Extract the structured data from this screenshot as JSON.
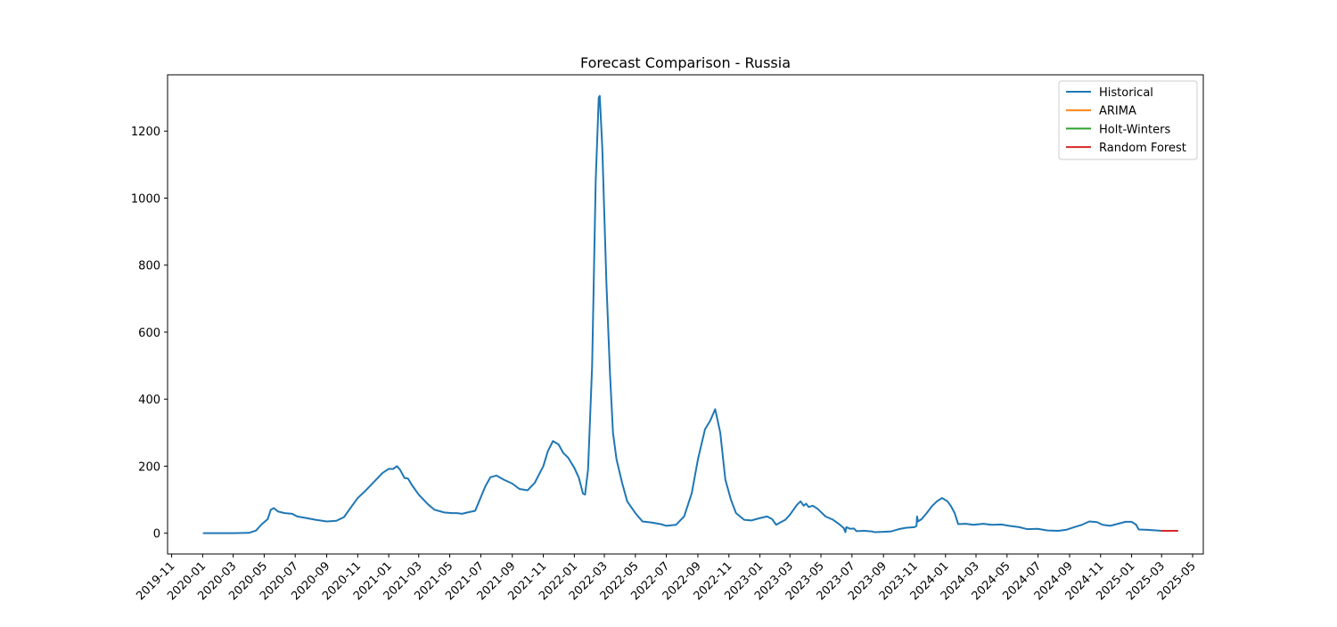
{
  "chart_data": {
    "type": "line",
    "title": "Forecast Comparison - Russia",
    "xlabel": "",
    "ylabel": "",
    "x_axis": {
      "type": "date",
      "range": [
        "2019-10-24",
        "2025-05-22"
      ],
      "ticks": [
        "2019-11",
        "2020-01",
        "2020-03",
        "2020-05",
        "2020-07",
        "2020-09",
        "2020-11",
        "2021-01",
        "2021-03",
        "2021-05",
        "2021-07",
        "2021-09",
        "2021-11",
        "2022-01",
        "2022-03",
        "2022-05",
        "2022-07",
        "2022-09",
        "2022-11",
        "2023-01",
        "2023-03",
        "2023-05",
        "2023-07",
        "2023-09",
        "2023-11",
        "2024-01",
        "2024-03",
        "2024-05",
        "2024-07",
        "2024-09",
        "2024-11",
        "2025-01",
        "2025-03",
        "2025-05"
      ]
    },
    "y_axis": {
      "range": [
        -62,
        1368
      ],
      "ticks": [
        0,
        200,
        400,
        600,
        800,
        1000,
        1200
      ]
    },
    "grid": false,
    "legend_position": "upper right",
    "series": [
      {
        "name": "Historical",
        "color": "#1f77b4",
        "points": [
          [
            "2020-01-03",
            0
          ],
          [
            "2020-02-01",
            0
          ],
          [
            "2020-03-01",
            0
          ],
          [
            "2020-04-01",
            1
          ],
          [
            "2020-04-15",
            8
          ],
          [
            "2020-04-25",
            25
          ],
          [
            "2020-05-08",
            42
          ],
          [
            "2020-05-14",
            70
          ],
          [
            "2020-05-20",
            75
          ],
          [
            "2020-05-28",
            65
          ],
          [
            "2020-06-10",
            60
          ],
          [
            "2020-06-25",
            58
          ],
          [
            "2020-07-05",
            50
          ],
          [
            "2020-07-20",
            46
          ],
          [
            "2020-08-10",
            40
          ],
          [
            "2020-09-01",
            35
          ],
          [
            "2020-09-20",
            37
          ],
          [
            "2020-10-05",
            48
          ],
          [
            "2020-10-20",
            80
          ],
          [
            "2020-11-01",
            105
          ],
          [
            "2020-11-15",
            125
          ],
          [
            "2020-12-01",
            150
          ],
          [
            "2020-12-20",
            180
          ],
          [
            "2021-01-01",
            192
          ],
          [
            "2021-01-10",
            192
          ],
          [
            "2021-01-17",
            200
          ],
          [
            "2021-01-23",
            190
          ],
          [
            "2021-02-01",
            165
          ],
          [
            "2021-02-08",
            163
          ],
          [
            "2021-02-15",
            145
          ],
          [
            "2021-03-01",
            115
          ],
          [
            "2021-03-20",
            85
          ],
          [
            "2021-04-01",
            70
          ],
          [
            "2021-04-20",
            62
          ],
          [
            "2021-05-05",
            60
          ],
          [
            "2021-05-15",
            60
          ],
          [
            "2021-05-25",
            58
          ],
          [
            "2021-06-05",
            62
          ],
          [
            "2021-06-20",
            67
          ],
          [
            "2021-06-25",
            85
          ],
          [
            "2021-07-10",
            140
          ],
          [
            "2021-07-20",
            167
          ],
          [
            "2021-08-01",
            172
          ],
          [
            "2021-08-15",
            160
          ],
          [
            "2021-09-01",
            148
          ],
          [
            "2021-09-15",
            132
          ],
          [
            "2021-10-01",
            128
          ],
          [
            "2021-10-15",
            150
          ],
          [
            "2021-11-01",
            200
          ],
          [
            "2021-11-10",
            245
          ],
          [
            "2021-11-20",
            275
          ],
          [
            "2021-12-01",
            265
          ],
          [
            "2021-12-10",
            240
          ],
          [
            "2021-12-20",
            225
          ],
          [
            "2022-01-01",
            195
          ],
          [
            "2022-01-10",
            165
          ],
          [
            "2022-01-18",
            118
          ],
          [
            "2022-01-22",
            115
          ],
          [
            "2022-01-28",
            190
          ],
          [
            "2022-02-05",
            500
          ],
          [
            "2022-02-12",
            1050
          ],
          [
            "2022-02-18",
            1300
          ],
          [
            "2022-02-20",
            1305
          ],
          [
            "2022-02-25",
            1150
          ],
          [
            "2022-03-05",
            750
          ],
          [
            "2022-03-12",
            480
          ],
          [
            "2022-03-18",
            300
          ],
          [
            "2022-03-25",
            220
          ],
          [
            "2022-04-05",
            150
          ],
          [
            "2022-04-15",
            95
          ],
          [
            "2022-05-01",
            60
          ],
          [
            "2022-05-15",
            35
          ],
          [
            "2022-06-01",
            32
          ],
          [
            "2022-06-20",
            27
          ],
          [
            "2022-07-01",
            22
          ],
          [
            "2022-07-20",
            25
          ],
          [
            "2022-08-05",
            50
          ],
          [
            "2022-08-20",
            120
          ],
          [
            "2022-09-01",
            220
          ],
          [
            "2022-09-15",
            310
          ],
          [
            "2022-09-25",
            335
          ],
          [
            "2022-10-05",
            370
          ],
          [
            "2022-10-15",
            300
          ],
          [
            "2022-10-25",
            160
          ],
          [
            "2022-11-05",
            100
          ],
          [
            "2022-11-15",
            60
          ],
          [
            "2022-12-01",
            40
          ],
          [
            "2022-12-15",
            38
          ],
          [
            "2023-01-01",
            45
          ],
          [
            "2023-01-15",
            50
          ],
          [
            "2023-01-25",
            42
          ],
          [
            "2023-02-02",
            25
          ],
          [
            "2023-02-10",
            32
          ],
          [
            "2023-02-20",
            40
          ],
          [
            "2023-03-01",
            55
          ],
          [
            "2023-03-15",
            85
          ],
          [
            "2023-03-22",
            95
          ],
          [
            "2023-03-28",
            82
          ],
          [
            "2023-04-02",
            88
          ],
          [
            "2023-04-07",
            78
          ],
          [
            "2023-04-15",
            82
          ],
          [
            "2023-04-25",
            72
          ],
          [
            "2023-05-10",
            50
          ],
          [
            "2023-05-25",
            40
          ],
          [
            "2023-06-05",
            28
          ],
          [
            "2023-06-15",
            15
          ],
          [
            "2023-06-18",
            3
          ],
          [
            "2023-06-20",
            18
          ],
          [
            "2023-06-28",
            13
          ],
          [
            "2023-07-05",
            14
          ],
          [
            "2023-07-10",
            6
          ],
          [
            "2023-07-25",
            7
          ],
          [
            "2023-08-10",
            5
          ],
          [
            "2023-08-15",
            3
          ],
          [
            "2023-09-01",
            4
          ],
          [
            "2023-09-15",
            5
          ],
          [
            "2023-10-01",
            12
          ],
          [
            "2023-10-15",
            16
          ],
          [
            "2023-11-01",
            18
          ],
          [
            "2023-11-05",
            22
          ],
          [
            "2023-11-06",
            50
          ],
          [
            "2023-11-08",
            35
          ],
          [
            "2023-11-15",
            42
          ],
          [
            "2023-11-25",
            60
          ],
          [
            "2023-12-05",
            80
          ],
          [
            "2023-12-15",
            95
          ],
          [
            "2023-12-25",
            105
          ],
          [
            "2024-01-05",
            95
          ],
          [
            "2024-01-12",
            80
          ],
          [
            "2024-01-19",
            60
          ],
          [
            "2024-01-26",
            27
          ],
          [
            "2024-02-10",
            28
          ],
          [
            "2024-02-25",
            25
          ],
          [
            "2024-03-15",
            28
          ],
          [
            "2024-04-01",
            25
          ],
          [
            "2024-04-20",
            26
          ],
          [
            "2024-05-05",
            22
          ],
          [
            "2024-05-25",
            18
          ],
          [
            "2024-06-10",
            12
          ],
          [
            "2024-06-30",
            13
          ],
          [
            "2024-07-20",
            8
          ],
          [
            "2024-08-10",
            7
          ],
          [
            "2024-08-25",
            10
          ],
          [
            "2024-09-10",
            18
          ],
          [
            "2024-09-25",
            25
          ],
          [
            "2024-10-10",
            35
          ],
          [
            "2024-10-25",
            33
          ],
          [
            "2024-11-05",
            25
          ],
          [
            "2024-11-20",
            22
          ],
          [
            "2024-12-05",
            28
          ],
          [
            "2024-12-20",
            34
          ],
          [
            "2025-01-01",
            34
          ],
          [
            "2025-01-10",
            25
          ],
          [
            "2025-01-15",
            11
          ],
          [
            "2025-02-01",
            10
          ],
          [
            "2025-02-20",
            8
          ],
          [
            "2025-03-01",
            7
          ]
        ]
      },
      {
        "name": "ARIMA",
        "color": "#ff7f0e",
        "points": [
          [
            "2025-03-01",
            7
          ],
          [
            "2025-04-01",
            7
          ]
        ]
      },
      {
        "name": "Holt-Winters",
        "color": "#2ca02c",
        "points": [
          [
            "2025-03-01",
            7
          ],
          [
            "2025-04-01",
            7
          ]
        ]
      },
      {
        "name": "Random Forest",
        "color": "#d62728",
        "points": [
          [
            "2025-03-01",
            7
          ],
          [
            "2025-04-01",
            7
          ]
        ]
      }
    ]
  }
}
